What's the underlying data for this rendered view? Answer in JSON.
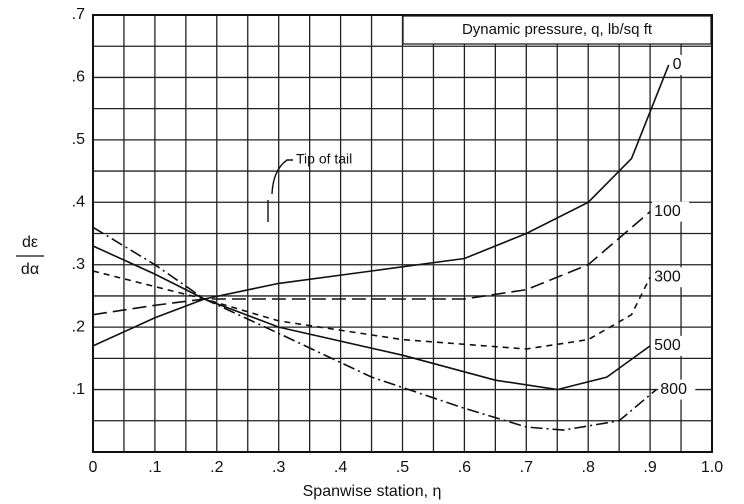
{
  "chart_data": {
    "type": "line",
    "legend_title": "Dynamic pressure, q, lb/sq ft",
    "x_label": "Spanwise station, η",
    "y_label_top": "dε",
    "y_label_bottom": "dα",
    "annotation": "Tip of tail",
    "xlim": [
      0,
      1.0
    ],
    "ylim": [
      0,
      0.7
    ],
    "xticks": [
      0,
      {
        "value": 0.1,
        "label": ".1"
      },
      {
        "value": 0.2,
        "label": ".2"
      },
      {
        "value": 0.3,
        "label": ".3"
      },
      {
        "value": 0.4,
        "label": ".4"
      },
      {
        "value": 0.5,
        "label": ".5"
      },
      {
        "value": 0.6,
        "label": ".6"
      },
      {
        "value": 0.7,
        "label": ".7"
      },
      {
        "value": 0.8,
        "label": ".8"
      },
      {
        "value": 0.9,
        "label": ".9"
      },
      {
        "value": 1.0,
        "label": "1.0"
      }
    ],
    "yticks": [
      {
        "value": 0.1,
        "label": ".1"
      },
      {
        "value": 0.2,
        "label": ".2"
      },
      {
        "value": 0.3,
        "label": ".3"
      },
      {
        "value": 0.4,
        "label": ".4"
      },
      {
        "value": 0.5,
        "label": ".5"
      },
      {
        "value": 0.6,
        "label": ".6"
      },
      {
        "value": 0.7,
        "label": ".7"
      }
    ],
    "xminor": [
      0.05,
      0.15,
      0.25,
      0.35,
      0.45,
      0.55,
      0.65,
      0.75,
      0.85,
      0.95
    ],
    "yminor": [
      0.05,
      0.15,
      0.25,
      0.35,
      0.45,
      0.55,
      0.65
    ],
    "grid": true,
    "series": [
      {
        "name": "0",
        "color": "#111",
        "dash": "none",
        "x": [
          0,
          0.1,
          0.18,
          0.3,
          0.45,
          0.6,
          0.7,
          0.8,
          0.87,
          0.93
        ],
        "values": [
          0.17,
          0.215,
          0.245,
          0.27,
          0.29,
          0.31,
          0.35,
          0.4,
          0.47,
          0.62
        ]
      },
      {
        "name": "100",
        "color": "#111",
        "dash": "14 6",
        "x": [
          0,
          0.1,
          0.18,
          0.3,
          0.6,
          0.7,
          0.8,
          0.9
        ],
        "values": [
          0.22,
          0.235,
          0.245,
          0.245,
          0.245,
          0.26,
          0.3,
          0.385
        ]
      },
      {
        "name": "300",
        "color": "#111",
        "dash": "6 5",
        "x": [
          0,
          0.1,
          0.18,
          0.3,
          0.5,
          0.7,
          0.8,
          0.87,
          0.9
        ],
        "values": [
          0.29,
          0.265,
          0.245,
          0.21,
          0.18,
          0.165,
          0.18,
          0.22,
          0.28
        ]
      },
      {
        "name": "500",
        "color": "#111",
        "dash": "none",
        "x": [
          0,
          0.1,
          0.18,
          0.3,
          0.5,
          0.65,
          0.75,
          0.83,
          0.9
        ],
        "values": [
          0.33,
          0.285,
          0.245,
          0.2,
          0.155,
          0.115,
          0.1,
          0.12,
          0.17
        ]
      },
      {
        "name": "800",
        "color": "#111",
        "dash": "12 4 2 4",
        "x": [
          0,
          0.1,
          0.18,
          0.3,
          0.45,
          0.6,
          0.7,
          0.76,
          0.85,
          0.91
        ],
        "values": [
          0.36,
          0.3,
          0.245,
          0.19,
          0.12,
          0.07,
          0.04,
          0.035,
          0.05,
          0.1
        ]
      }
    ]
  }
}
